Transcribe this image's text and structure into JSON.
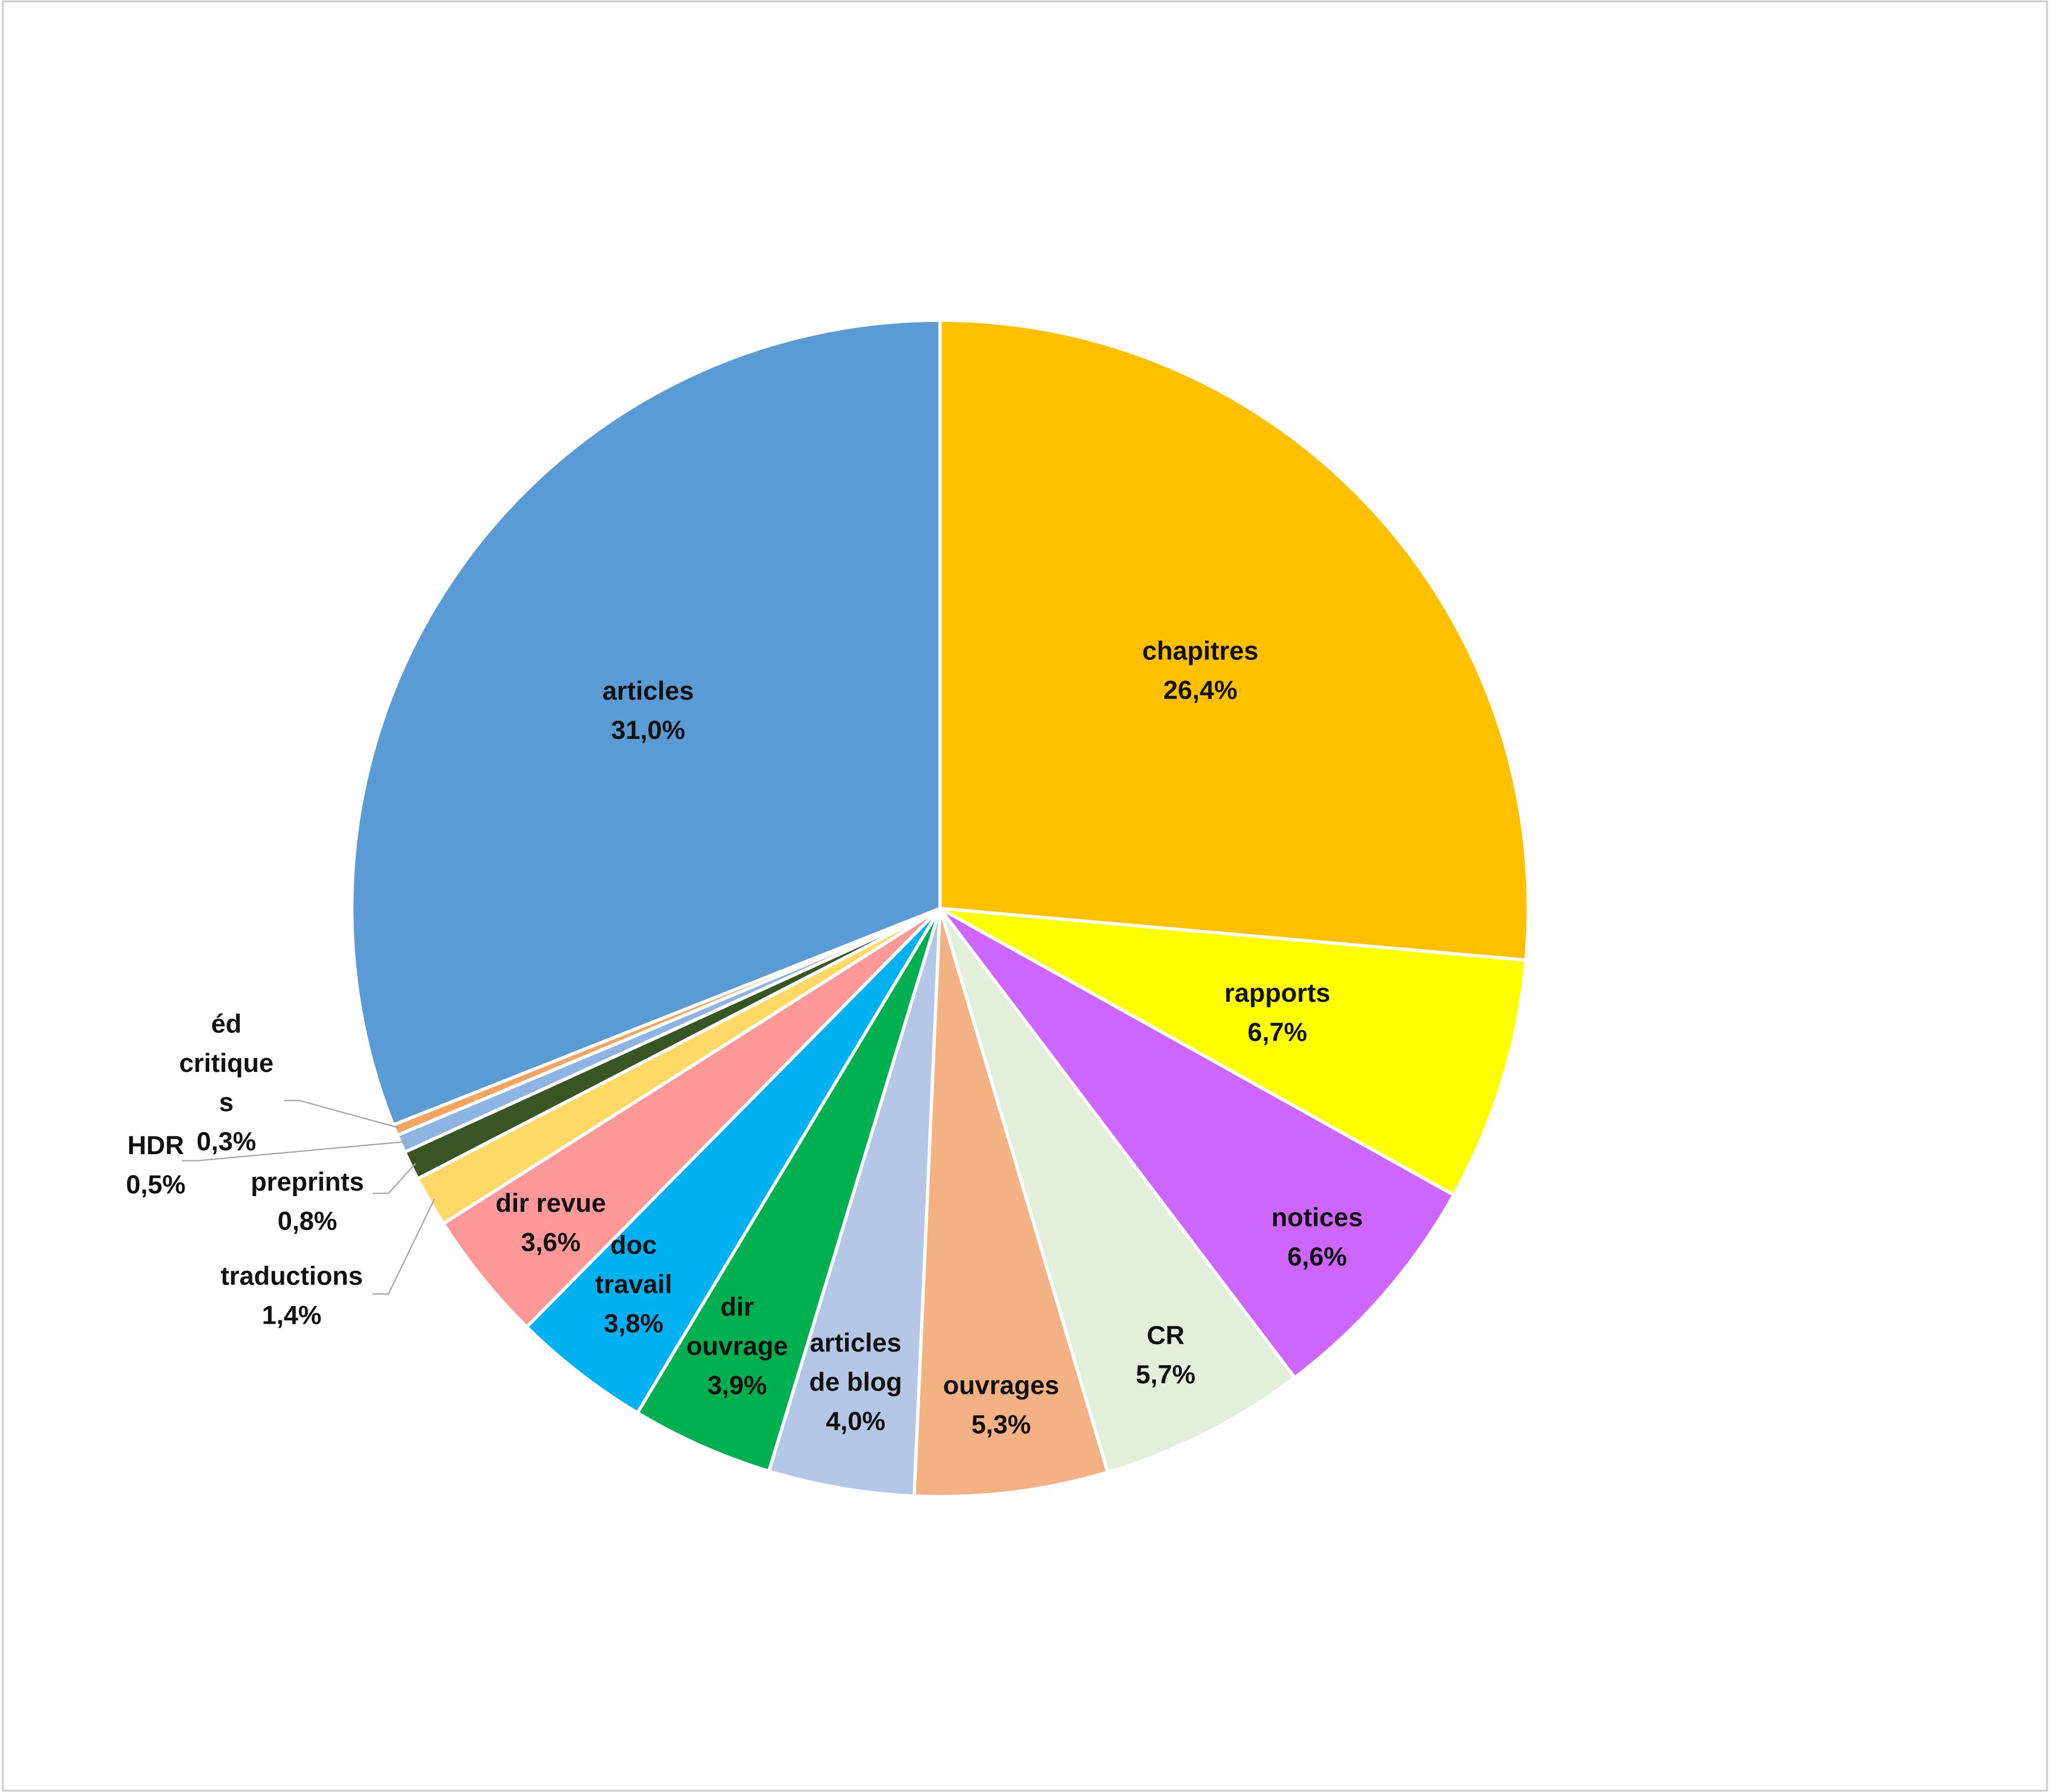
{
  "chart_data": {
    "type": "pie",
    "categories": [
      "chapitres",
      "rapports",
      "notices",
      "CR",
      "ouvrages",
      "articles\nde blog",
      "dir\nouvrage",
      "doc\ntravail",
      "dir revue",
      "traductions",
      "preprints",
      "HDR",
      "éd\ncritique\ns",
      "articles"
    ],
    "values": [
      26.4,
      6.7,
      6.6,
      5.7,
      5.3,
      4.0,
      3.9,
      3.8,
      3.6,
      1.4,
      0.8,
      0.5,
      0.3,
      31.0
    ],
    "value_labels": [
      "26,4%",
      "6,7%",
      "6,6%",
      "5,7%",
      "5,3%",
      "4,0%",
      "3,9%",
      "3,8%",
      "3,6%",
      "1,4%",
      "0,8%",
      "0,5%",
      "0,3%",
      "31,0%"
    ],
    "colors": [
      "#ffc000",
      "#ffff00",
      "#cc66ff",
      "#e2efda",
      "#f4b183",
      "#b4c7e7",
      "#00b050",
      "#00b0f0",
      "#ff9999",
      "#ffd966",
      "#375623",
      "#8eb4e3",
      "#f4a460",
      "#5b9bd5"
    ]
  }
}
